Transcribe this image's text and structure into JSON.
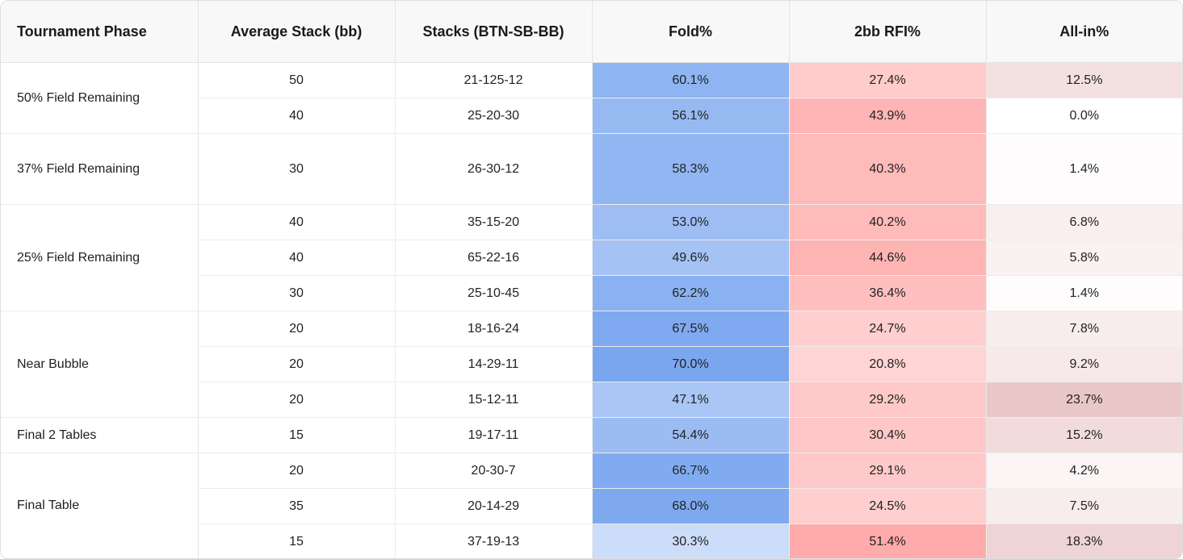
{
  "headers": [
    "Tournament Phase",
    "Average Stack (bb)",
    "Stacks (BTN-SB-BB)",
    "Fold%",
    "2bb RFI%",
    "All-in%"
  ],
  "groups": [
    {
      "phase": "50% Field Remaining",
      "rows": [
        {
          "avg": "50",
          "stacks": "21-125-12",
          "fold": "60.1%",
          "rfi": "27.4%",
          "allin": "12.5%"
        },
        {
          "avg": "40",
          "stacks": "25-20-30",
          "fold": "56.1%",
          "rfi": "43.9%",
          "allin": "0.0%"
        }
      ]
    },
    {
      "phase": "37% Field Remaining",
      "rows": [
        {
          "avg": "30",
          "stacks": "26-30-12",
          "fold": "58.3%",
          "rfi": "40.3%",
          "allin": "1.4%"
        }
      ]
    },
    {
      "phase": "25% Field Remaining",
      "rows": [
        {
          "avg": "40",
          "stacks": "35-15-20",
          "fold": "53.0%",
          "rfi": "40.2%",
          "allin": "6.8%"
        },
        {
          "avg": "40",
          "stacks": "65-22-16",
          "fold": "49.6%",
          "rfi": "44.6%",
          "allin": "5.8%"
        },
        {
          "avg": "30",
          "stacks": "25-10-45",
          "fold": "62.2%",
          "rfi": "36.4%",
          "allin": "1.4%"
        }
      ]
    },
    {
      "phase": "Near Bubble",
      "rows": [
        {
          "avg": "20",
          "stacks": "18-16-24",
          "fold": "67.5%",
          "rfi": "24.7%",
          "allin": "7.8%"
        },
        {
          "avg": "20",
          "stacks": "14-29-11",
          "fold": "70.0%",
          "rfi": "20.8%",
          "allin": "9.2%"
        },
        {
          "avg": "20",
          "stacks": "15-12-11",
          "fold": "47.1%",
          "rfi": "29.2%",
          "allin": "23.7%"
        }
      ]
    },
    {
      "phase": "Final 2 Tables",
      "rows": [
        {
          "avg": "15",
          "stacks": "19-17-11",
          "fold": "54.4%",
          "rfi": "30.4%",
          "allin": "15.2%"
        }
      ]
    },
    {
      "phase": "Final Table",
      "rows": [
        {
          "avg": "20",
          "stacks": "20-30-7",
          "fold": "66.7%",
          "rfi": "29.1%",
          "allin": "4.2%"
        },
        {
          "avg": "35",
          "stacks": "20-14-29",
          "fold": "68.0%",
          "rfi": "24.5%",
          "allin": "7.5%"
        },
        {
          "avg": "15",
          "stacks": "37-19-13",
          "fold": "30.3%",
          "rfi": "51.4%",
          "allin": "18.3%"
        }
      ]
    }
  ],
  "colors": {
    "fold_rgb": "#7aa6ef",
    "rfi_rgb": "#ffabab",
    "allin_rgb": "#e8c4c4"
  }
}
